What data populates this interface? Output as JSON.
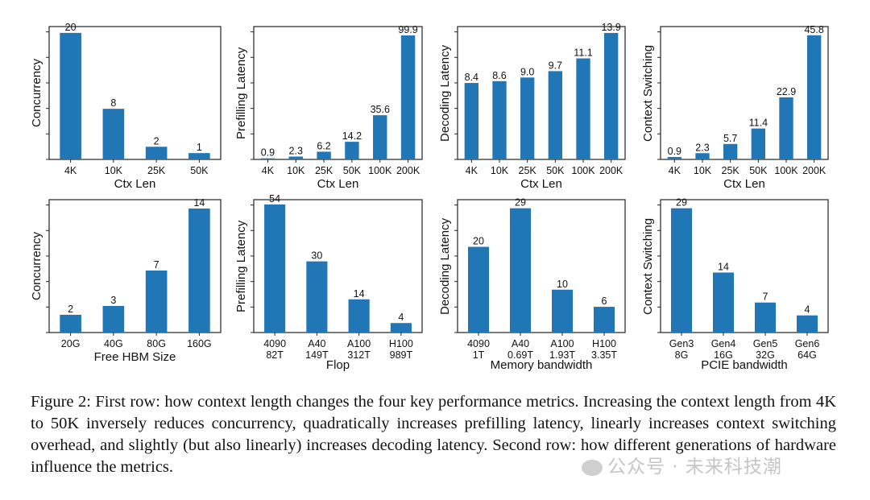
{
  "chart_data": [
    {
      "type": "bar",
      "ylabel": "Concurrency",
      "xlabel": "Ctx Len",
      "categories": [
        "4K",
        "10K",
        "25K",
        "50K"
      ],
      "values": [
        20,
        8,
        2,
        1
      ],
      "labels": [
        "20",
        "8",
        "2",
        "1"
      ],
      "ylim": [
        0,
        21
      ]
    },
    {
      "type": "bar",
      "ylabel": "Prefilling Latency",
      "xlabel": "Ctx Len",
      "categories": [
        "4K",
        "10K",
        "25K",
        "50K",
        "100K",
        "200K"
      ],
      "values": [
        0.9,
        2.3,
        6.2,
        14.2,
        35.6,
        99.9
      ],
      "labels": [
        "0.9",
        "2.3",
        "6.2",
        "14.2",
        "35.6",
        "99.9"
      ],
      "ylim": [
        0,
        107
      ]
    },
    {
      "type": "bar",
      "ylabel": "Decoding Latency",
      "xlabel": "Ctx Len",
      "categories": [
        "4K",
        "10K",
        "25K",
        "50K",
        "100K",
        "200K"
      ],
      "values": [
        8.4,
        8.6,
        9.0,
        9.7,
        11.1,
        13.9
      ],
      "labels": [
        "8.4",
        "8.6",
        "9.0",
        "9.7",
        "11.1",
        "13.9"
      ],
      "ylim": [
        0,
        14.6
      ]
    },
    {
      "type": "bar",
      "ylabel": "Context Switching",
      "xlabel": "Ctx Len",
      "categories": [
        "4K",
        "10K",
        "25K",
        "50K",
        "100K",
        "200K"
      ],
      "values": [
        0.9,
        2.3,
        5.7,
        11.4,
        22.9,
        45.8
      ],
      "labels": [
        "0.9",
        "2.3",
        "5.7",
        "11.4",
        "22.9",
        "45.8"
      ],
      "ylim": [
        0,
        49
      ]
    },
    {
      "type": "bar",
      "ylabel": "Concurrency",
      "xlabel": "Free HBM Size",
      "categories": [
        "20G",
        "40G",
        "80G",
        "160G"
      ],
      "values": [
        2,
        3,
        7,
        14
      ],
      "labels": [
        "2",
        "3",
        "7",
        "14"
      ],
      "ylim": [
        0,
        15
      ]
    },
    {
      "type": "bar",
      "ylabel": "Prefilling Latency",
      "xlabel": "Flop",
      "categories": [
        "4090\n82T",
        "A40\n149T",
        "A100\n312T",
        "H100\n989T"
      ],
      "values": [
        54,
        30,
        14,
        4
      ],
      "labels": [
        "54",
        "30",
        "14",
        "4"
      ],
      "ylim": [
        0,
        56
      ]
    },
    {
      "type": "bar",
      "ylabel": "Decoding Latency",
      "xlabel": "Memory bandwidth",
      "categories": [
        "4090\n1T",
        "A40\n0.69T",
        "A100\n1.93T",
        "H100\n3.35T"
      ],
      "values": [
        20,
        29,
        10,
        6
      ],
      "labels": [
        "20",
        "29",
        "10",
        "6"
      ],
      "ylim": [
        0,
        31
      ]
    },
    {
      "type": "bar",
      "ylabel": "Context Switching",
      "xlabel": "PCIE bandwidth",
      "categories": [
        "Gen3\n8G",
        "Gen4\n16G",
        "Gen5\n32G",
        "Gen6\n64G"
      ],
      "values": [
        29,
        14,
        7,
        4
      ],
      "labels": [
        "29",
        "14",
        "7",
        "4"
      ],
      "ylim": [
        0,
        31
      ]
    }
  ],
  "colors": {
    "bar": "#2176b5",
    "axis": "#222222",
    "text": "#111111"
  },
  "caption": "Figure 2: First row: how context length changes the four key performance metrics. Increasing the context length from 4K to 50K inversely reduces concurrency, quadratically increases prefilling latency, linearly increases context switching overhead, and slightly (but also linearly) increases decoding latency. Second row: how different generations of hardware influence the metrics.",
  "watermark": "公众号 · 未来科技潮"
}
